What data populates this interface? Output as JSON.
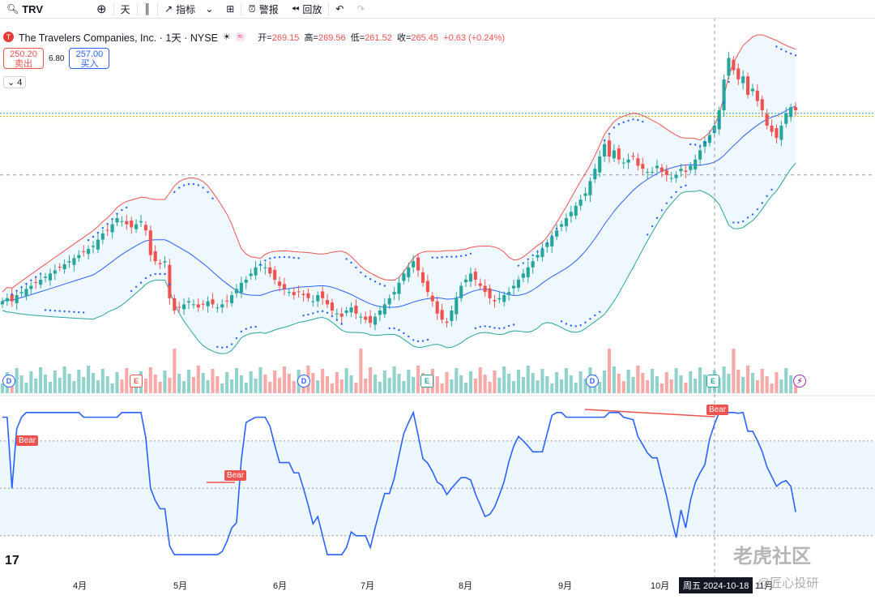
{
  "toolbar": {
    "symbol": "TRV",
    "interval": "天",
    "indicators": "指标",
    "alert": "警报",
    "replay": "回放"
  },
  "legend": {
    "name": "The Travelers Companies, Inc. · 1天 · NYSE",
    "o_label": "开=",
    "o": "269.15",
    "h_label": "高=",
    "h": "269.56",
    "l_label": "低=",
    "l": "261.52",
    "c_label": "收=",
    "c": "265.45",
    "chg": "+0.63 (+0.24%)"
  },
  "bidask": {
    "sell_price": "250.20",
    "sell_label": "卖出",
    "spread": "6.80",
    "buy_price": "257.00",
    "buy_label": "买入"
  },
  "collapse_count": "4",
  "bear_label": "Bear",
  "months": [
    "4月",
    "5月",
    "6月",
    "7月",
    "8月",
    "9月",
    "10月",
    "11月"
  ],
  "crosshair_date": "周五 2024-10-18",
  "events": {
    "d": "D",
    "e": "E"
  },
  "watermarks": {
    "tiger": "老虎社区",
    "author": "@匠心投研"
  },
  "colors": {
    "up": "#26a69a",
    "down": "#ef5350",
    "basis": "#2962ff",
    "upper": "#ef5350",
    "lower": "#26a69a"
  },
  "chart_data": {
    "type": "candlestick",
    "instrument": "TRV",
    "indicators": [
      "Bollinger Bands",
      "Parabolic SAR",
      "Volume",
      "RSI"
    ],
    "closes": [
      243,
      244,
      243,
      245,
      246,
      247,
      248,
      249,
      250,
      251,
      252,
      253,
      254,
      255,
      256,
      257,
      258,
      259,
      260,
      261,
      263,
      265,
      266,
      268,
      270,
      269,
      268,
      267,
      268,
      269,
      266,
      258,
      256,
      255,
      256,
      244,
      240,
      241,
      242,
      243,
      242,
      241,
      242,
      243,
      242,
      241,
      242,
      243,
      245,
      247,
      249,
      250,
      252,
      254,
      255,
      254,
      252,
      250,
      248,
      247,
      246,
      245,
      246,
      245,
      244,
      243,
      245,
      244,
      242,
      240,
      239,
      238,
      240,
      241,
      239,
      238,
      237,
      236,
      238,
      240,
      242,
      244,
      246,
      249,
      252,
      254,
      256,
      253,
      249,
      246,
      243,
      239,
      237,
      236,
      240,
      244,
      248,
      250,
      252,
      250,
      248,
      246,
      244,
      243,
      244,
      245,
      246,
      248,
      250,
      252,
      254,
      256,
      258,
      260,
      262,
      264,
      266,
      268,
      270,
      272,
      274,
      276,
      278,
      282,
      286,
      290,
      294,
      290,
      292,
      289,
      288,
      289,
      290,
      287,
      286,
      285,
      285,
      287,
      285,
      284,
      283,
      284,
      286,
      285,
      287,
      289,
      292,
      295,
      297,
      300,
      305,
      315,
      322,
      318,
      315,
      316,
      310,
      312,
      308,
      305,
      300,
      298,
      296,
      300,
      304,
      306,
      305
    ],
    "volume_spikes_index": [
      36,
      75,
      127,
      153
    ],
    "rsi": {
      "upper_band": 70,
      "mid": 50,
      "lower_band": 30,
      "divergence_labels": [
        "Bear",
        "Bear",
        "Bear"
      ]
    },
    "x_ticks": [
      "4月",
      "5月",
      "6月",
      "7月",
      "8月",
      "9月",
      "10月",
      "11月"
    ]
  }
}
